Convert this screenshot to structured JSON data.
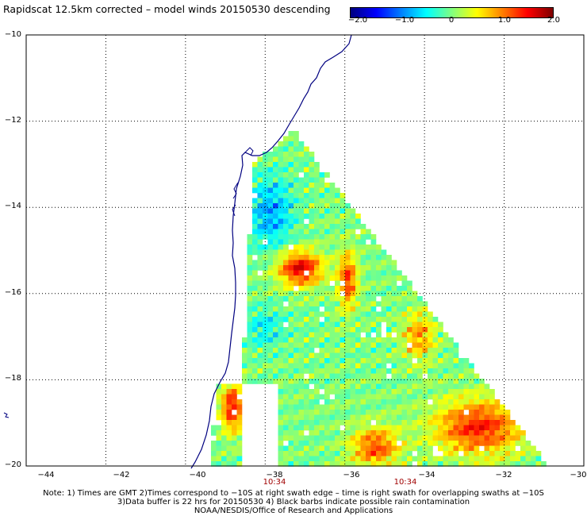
{
  "title": "Rapidscat 12.5km corrected – model winds 20150530 descending",
  "colorbar": {
    "colors": [
      "#000080",
      "#0000ff",
      "#0080ff",
      "#00ffff",
      "#80ff80",
      "#ffff00",
      "#ff8000",
      "#ff0000",
      "#800000"
    ],
    "ticks": [
      "−2.0",
      "−1.0",
      "0",
      "1.0",
      "2.0"
    ],
    "range": [
      -2.0,
      2.0
    ]
  },
  "map": {
    "lon_range": [
      -44,
      -30
    ],
    "lat_range": [
      -20,
      -10
    ],
    "lon_ticks": [
      {
        "value": -44,
        "label": "−44"
      },
      {
        "value": -42,
        "label": "−42"
      },
      {
        "value": -40,
        "label": "−40"
      },
      {
        "value": -38,
        "label": "−38"
      },
      {
        "value": -36,
        "label": "−36"
      },
      {
        "value": -34,
        "label": "−34"
      },
      {
        "value": -32,
        "label": "−32"
      },
      {
        "value": -30,
        "label": "−30"
      }
    ],
    "lat_ticks": [
      {
        "value": -10,
        "label": "−10"
      },
      {
        "value": -12,
        "label": "−12"
      },
      {
        "value": -14,
        "label": "−14"
      },
      {
        "value": -16,
        "label": "−16"
      },
      {
        "value": -18,
        "label": "−18"
      },
      {
        "value": -20,
        "label": "−20"
      }
    ],
    "time_labels": [
      {
        "lon": -38,
        "label": "10:34"
      },
      {
        "lon": -34,
        "label": "10:34"
      }
    ],
    "coast_color": "#000080",
    "grid": "dotted"
  },
  "notes": {
    "line1": "Note: 1) Times are GMT 2)Times correspond to −10S at right swath edge – time is right swath for overlapping swaths at −10S",
    "line2": "3)Data buffer is 22 hrs for 20150530 4) Black barbs indicate possible rain contamination",
    "line3": "NOAA/NESDIS/Office of Research and Applications"
  }
}
